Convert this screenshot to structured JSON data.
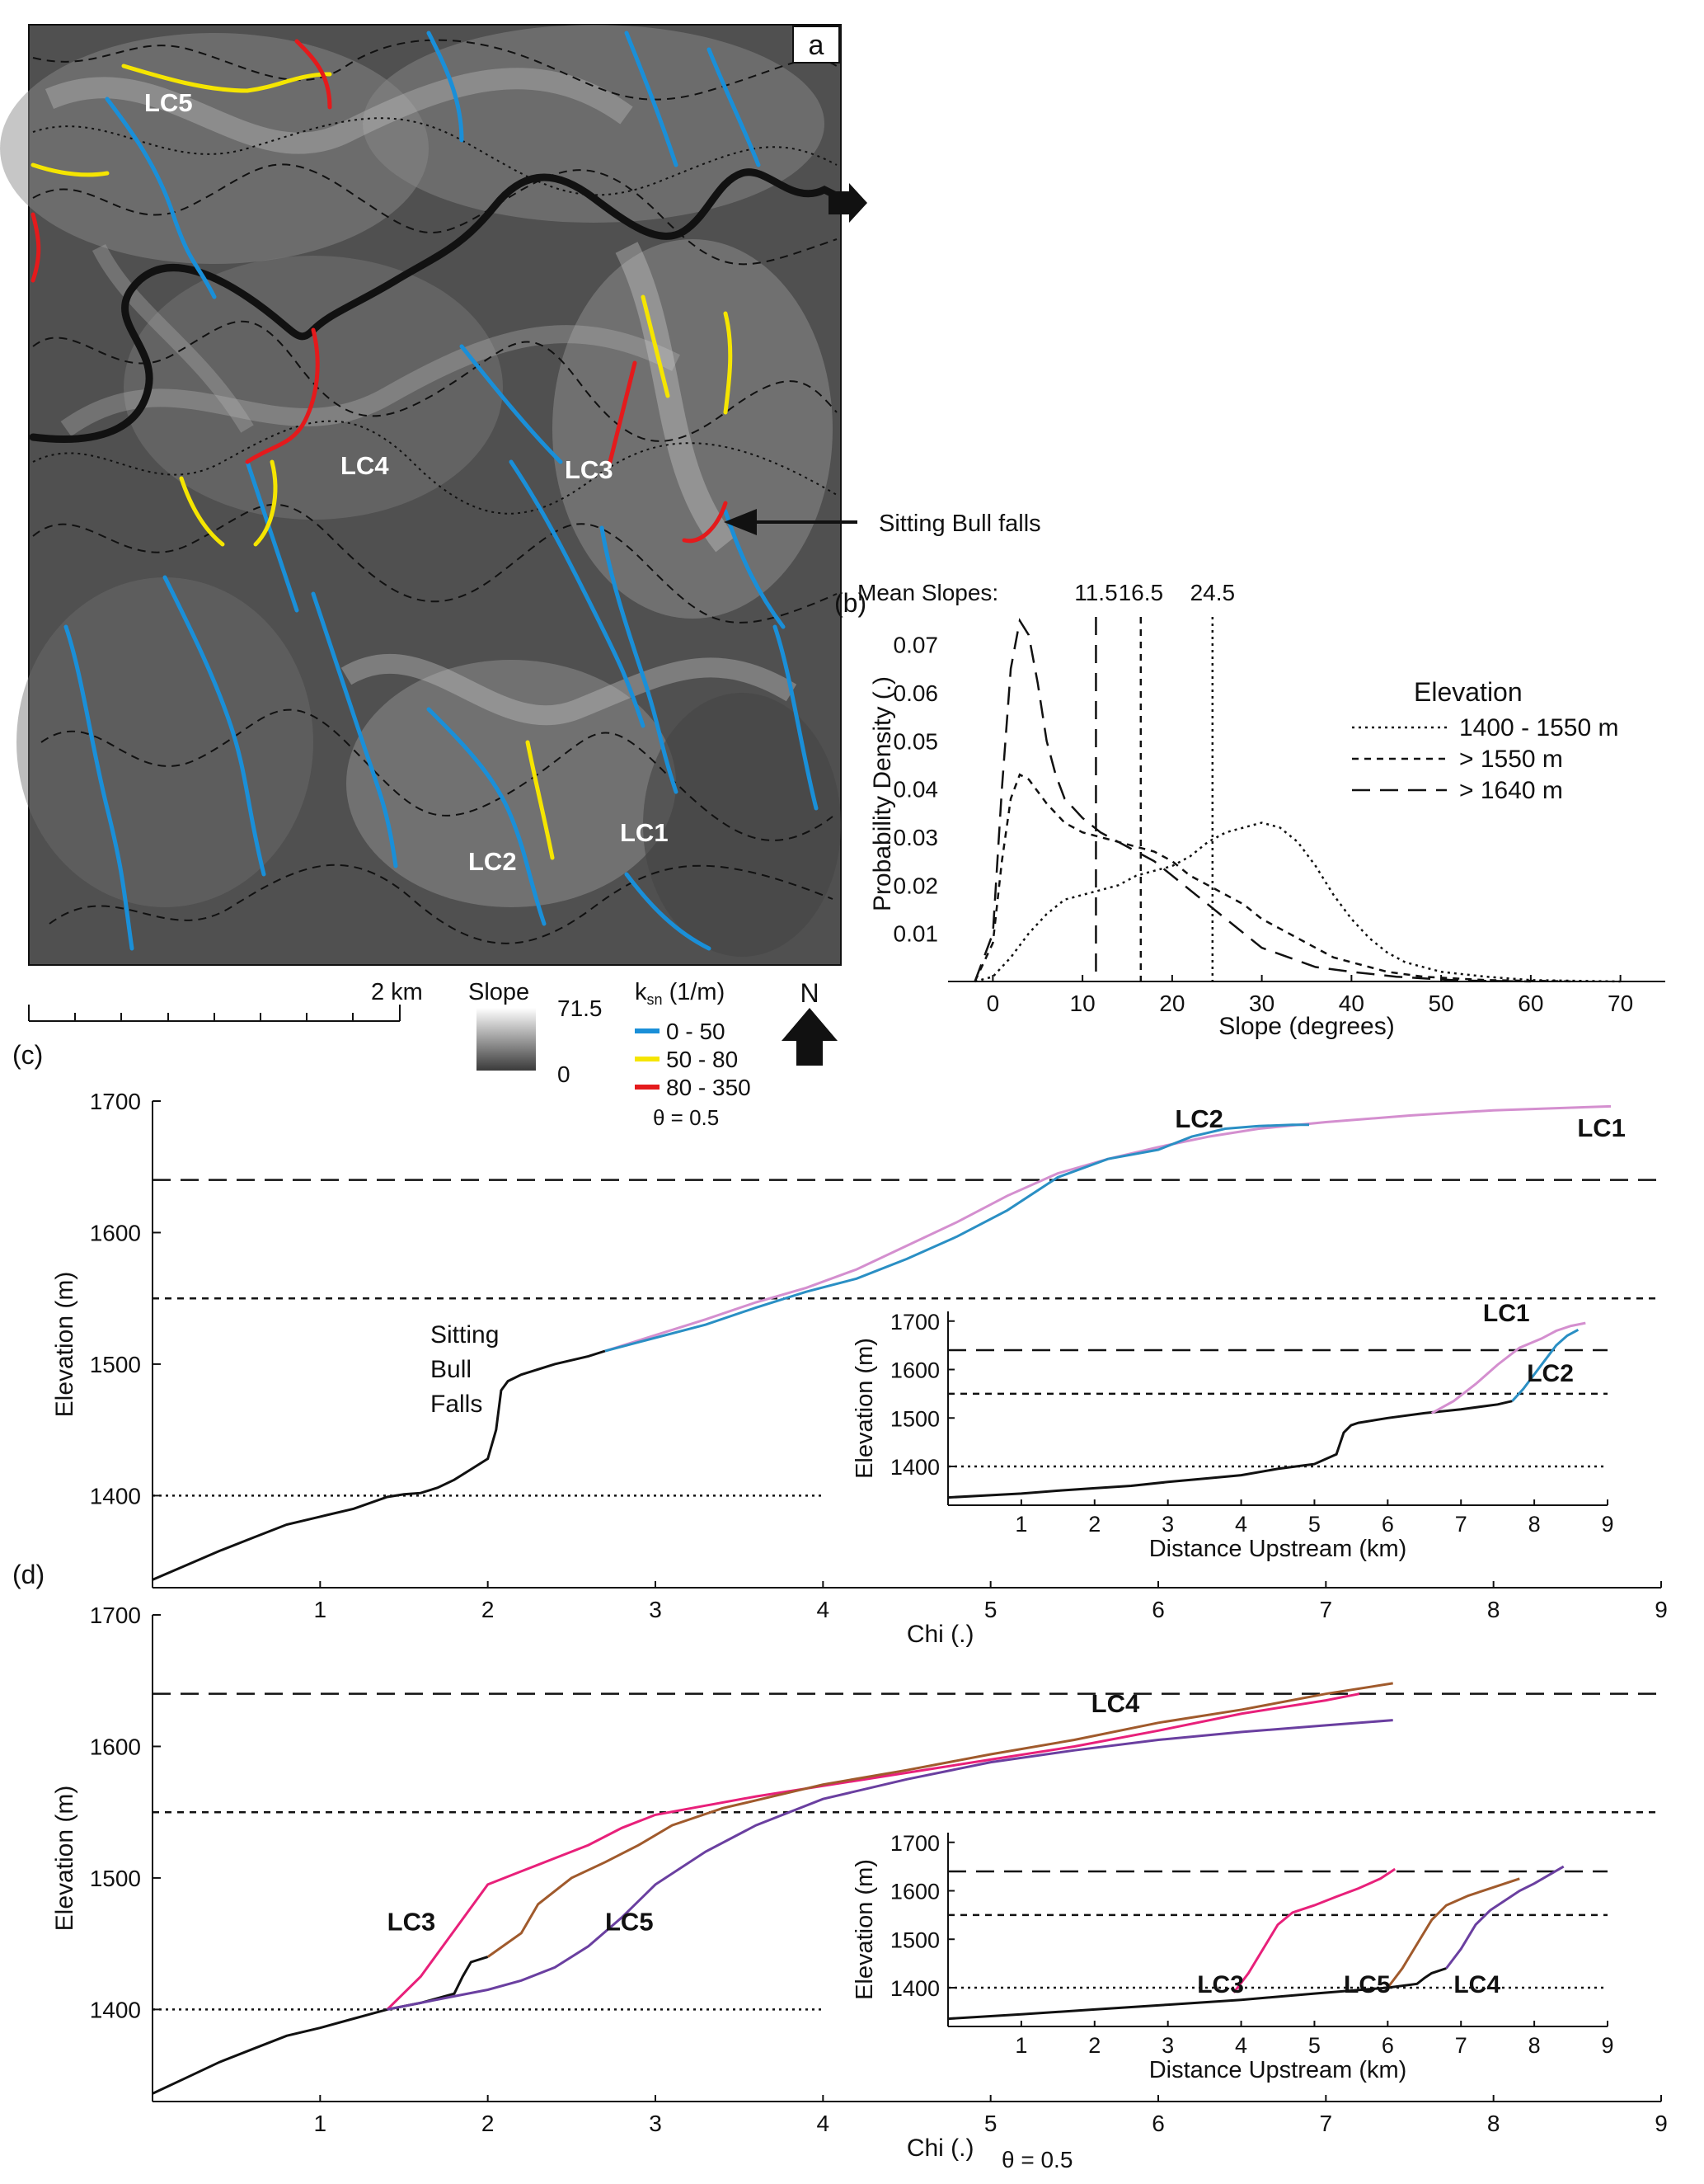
{
  "panel_a": {
    "label": "a",
    "callout": "Sitting Bull falls",
    "reach_labels": [
      "LC5",
      "LC4",
      "LC3",
      "LC2",
      "LC1"
    ],
    "scalebar_label": "2 km",
    "slope_legend": {
      "title": "Slope",
      "max": "71.5",
      "min": "0"
    },
    "ksn_legend": {
      "title": "k",
      "sub": "sn",
      "unit": " (1/m)",
      "classes": [
        {
          "label": "0 - 50",
          "color": "#1a8fd8"
        },
        {
          "label": "50 - 80",
          "color": "#f5e500"
        },
        {
          "label": "80 - 350",
          "color": "#e41a1c"
        }
      ],
      "theta": "θ = 0.5"
    },
    "north_label": "N",
    "main_river_color": "#111111"
  },
  "chart_data": [
    {
      "id": "b",
      "type": "line",
      "panel_label": "(b)",
      "xlabel": "Slope (degrees)",
      "ylabel": "Probability Density (.)",
      "xlim": [
        -5,
        75
      ],
      "ylim": [
        0,
        0.078
      ],
      "xticks": [
        0,
        10,
        20,
        30,
        40,
        50,
        60,
        70
      ],
      "yticks": [
        0.01,
        0.02,
        0.03,
        0.04,
        0.05,
        0.06,
        0.07
      ],
      "mean_slopes_label": "Mean Slopes:",
      "mean_lines": [
        {
          "value": 11.5,
          "label": "11.5",
          "dash": "22,12"
        },
        {
          "value": 16.5,
          "label": "16.5",
          "dash": "8,7"
        },
        {
          "value": 24.5,
          "label": "24.5",
          "dash": "3,5"
        }
      ],
      "legend_title": "Elevation",
      "legend_position": "right",
      "series": [
        {
          "name": "1400 - 1550 m",
          "dash": "3,5",
          "x": [
            -2,
            0,
            2,
            4,
            6,
            8,
            10,
            12,
            14,
            16,
            18,
            20,
            22,
            24,
            26,
            28,
            30,
            32,
            34,
            36,
            38,
            40,
            42,
            44,
            46,
            50,
            55,
            60,
            70
          ],
          "y": [
            0,
            0.001,
            0.005,
            0.01,
            0.014,
            0.017,
            0.018,
            0.019,
            0.02,
            0.022,
            0.023,
            0.024,
            0.026,
            0.029,
            0.031,
            0.032,
            0.033,
            0.032,
            0.029,
            0.024,
            0.018,
            0.013,
            0.009,
            0.006,
            0.004,
            0.002,
            0.001,
            0.0003,
            0
          ]
        },
        {
          "name": "> 1550 m",
          "dash": "8,7",
          "x": [
            -2,
            0,
            1,
            2,
            3,
            4,
            6,
            8,
            10,
            12,
            14,
            16,
            18,
            20,
            22,
            24,
            26,
            28,
            30,
            32,
            34,
            36,
            38,
            40,
            44,
            48,
            55,
            65
          ],
          "y": [
            0,
            0.008,
            0.025,
            0.038,
            0.043,
            0.042,
            0.037,
            0.033,
            0.031,
            0.03,
            0.029,
            0.028,
            0.027,
            0.025,
            0.022,
            0.02,
            0.018,
            0.016,
            0.013,
            0.011,
            0.009,
            0.007,
            0.005,
            0.004,
            0.002,
            0.001,
            0.0003,
            0
          ]
        },
        {
          "name": "> 1640 m",
          "dash": "22,12",
          "x": [
            -2,
            0,
            1,
            2,
            3,
            4,
            5,
            6,
            7,
            8,
            10,
            12,
            14,
            16,
            18,
            20,
            22,
            24,
            26,
            28,
            30,
            33,
            36,
            40,
            45,
            52,
            60
          ],
          "y": [
            0,
            0.01,
            0.04,
            0.065,
            0.075,
            0.072,
            0.062,
            0.05,
            0.043,
            0.038,
            0.034,
            0.031,
            0.029,
            0.027,
            0.025,
            0.022,
            0.019,
            0.016,
            0.013,
            0.01,
            0.007,
            0.005,
            0.003,
            0.002,
            0.001,
            0.0002,
            0
          ]
        }
      ]
    },
    {
      "id": "c",
      "type": "line",
      "panel_label": "(c)",
      "xlabel": "Chi (.)",
      "ylabel": "Elevation (m)",
      "xlim": [
        0,
        9
      ],
      "ylim": [
        1330,
        1700
      ],
      "xticks": [
        1,
        2,
        3,
        4,
        5,
        6,
        7,
        8,
        9
      ],
      "yticks": [
        1400,
        1500,
        1600,
        1700
      ],
      "hlines": [
        {
          "y": 1640,
          "dash": "22,12"
        },
        {
          "y": 1550,
          "dash": "8,7"
        },
        {
          "y": 1400,
          "dash": "3,5",
          "xmax": 4
        }
      ],
      "annotation_lines": [
        "Sitting",
        "Bull",
        "Falls"
      ],
      "series": [
        {
          "name": "",
          "color": "#111111",
          "x": [
            0,
            0.2,
            0.4,
            0.6,
            0.8,
            1.0,
            1.2,
            1.4,
            1.5,
            1.6,
            1.7,
            1.8,
            1.9,
            2.0,
            2.05,
            2.08,
            2.12,
            2.2,
            2.4,
            2.6,
            2.7
          ],
          "y": [
            1336,
            1347,
            1358,
            1368,
            1378,
            1384,
            1390,
            1399,
            1401,
            1402,
            1406,
            1412,
            1420,
            1428,
            1450,
            1480,
            1487,
            1492,
            1500,
            1506,
            1510
          ]
        },
        {
          "name": "LC1",
          "color": "#d48fcf",
          "x": [
            2.7,
            3.0,
            3.3,
            3.6,
            3.9,
            4.2,
            4.5,
            4.8,
            5.1,
            5.4,
            5.7,
            6.0,
            6.3,
            6.6,
            7.0,
            7.5,
            8.0,
            8.7
          ],
          "y": [
            1510,
            1522,
            1534,
            1547,
            1558,
            1572,
            1590,
            1608,
            1628,
            1645,
            1656,
            1665,
            1673,
            1679,
            1684,
            1689,
            1693,
            1696
          ]
        },
        {
          "name": "LC2",
          "color": "#2a8fc4",
          "x": [
            2.7,
            3.0,
            3.3,
            3.6,
            3.9,
            4.2,
            4.5,
            4.8,
            5.1,
            5.4,
            5.7,
            6.0,
            6.2,
            6.4,
            6.6,
            6.8,
            6.9
          ],
          "y": [
            1510,
            1520,
            1530,
            1543,
            1555,
            1565,
            1580,
            1597,
            1617,
            1642,
            1656,
            1663,
            1673,
            1679,
            1681,
            1682,
            1682
          ]
        }
      ],
      "series_labels": [
        "LC2",
        "LC1"
      ],
      "inset": {
        "xlabel": "Distance Upstream (km)",
        "ylabel": "Elevation (m)",
        "xlim": [
          0,
          9
        ],
        "ylim": [
          1320,
          1720
        ],
        "xticks": [
          1,
          2,
          3,
          4,
          5,
          6,
          7,
          8,
          9
        ],
        "yticks": [
          1400,
          1500,
          1600,
          1700
        ],
        "hlines": [
          {
            "y": 1640,
            "dash": "22,12"
          },
          {
            "y": 1550,
            "dash": "8,7"
          },
          {
            "y": 1400,
            "dash": "3,5"
          }
        ],
        "series_labels": [
          "LC1",
          "LC2"
        ],
        "series": [
          {
            "name": "",
            "color": "#111111",
            "x": [
              0,
              0.5,
              1,
              1.5,
              2,
              2.5,
              3,
              3.5,
              4,
              4.5,
              5,
              5.3,
              5.4,
              5.5,
              5.6,
              6,
              6.5,
              7,
              7.5,
              7.7
            ],
            "y": [
              1336,
              1340,
              1344,
              1350,
              1355,
              1360,
              1368,
              1375,
              1382,
              1395,
              1405,
              1425,
              1470,
              1485,
              1490,
              1500,
              1510,
              1518,
              1528,
              1535
            ]
          },
          {
            "name": "LC1",
            "color": "#d48fcf",
            "x": [
              6.6,
              6.9,
              7.2,
              7.5,
              7.8,
              8.1,
              8.3,
              8.5,
              8.7
            ],
            "y": [
              1510,
              1535,
              1570,
              1610,
              1645,
              1664,
              1680,
              1690,
              1696
            ]
          },
          {
            "name": "LC2",
            "color": "#2a8fc4",
            "x": [
              7.7,
              7.85,
              8.0,
              8.15,
              8.3,
              8.45,
              8.6
            ],
            "y": [
              1535,
              1560,
              1590,
              1620,
              1650,
              1670,
              1682
            ]
          }
        ]
      }
    },
    {
      "id": "d",
      "type": "line",
      "panel_label": "(d)",
      "xlabel": "Chi (.)",
      "ylabel": "Elevation (m)",
      "xlim": [
        0,
        9
      ],
      "ylim": [
        1330,
        1700
      ],
      "xticks": [
        1,
        2,
        3,
        4,
        5,
        6,
        7,
        8,
        9
      ],
      "yticks": [
        1400,
        1500,
        1600,
        1700
      ],
      "hlines": [
        {
          "y": 1640,
          "dash": "22,12"
        },
        {
          "y": 1550,
          "dash": "8,7"
        },
        {
          "y": 1400,
          "dash": "3,5",
          "xmax": 4
        }
      ],
      "footer": "θ = 0.5",
      "series": [
        {
          "name": "",
          "color": "#111111",
          "x": [
            0,
            0.2,
            0.4,
            0.6,
            0.8,
            1.0,
            1.2,
            1.4,
            1.6,
            1.8,
            1.85,
            1.9,
            2.0
          ],
          "y": [
            1336,
            1348,
            1360,
            1370,
            1380,
            1386,
            1393,
            1400,
            1405,
            1412,
            1425,
            1436,
            1440
          ]
        },
        {
          "name": "LC3",
          "color": "#e8207a",
          "x": [
            1.4,
            1.6,
            1.8,
            2.0,
            2.2,
            2.4,
            2.6,
            2.8,
            3.0,
            3.3,
            3.6,
            4.0,
            4.5,
            5.0,
            5.5,
            6.0,
            6.5,
            7.0,
            7.2
          ],
          "y": [
            1400,
            1425,
            1460,
            1495,
            1505,
            1515,
            1525,
            1538,
            1548,
            1555,
            1562,
            1570,
            1580,
            1590,
            1600,
            1612,
            1625,
            1635,
            1640
          ]
        },
        {
          "name": "LC4",
          "color": "#a05a2c",
          "x": [
            2.0,
            2.2,
            2.3,
            2.5,
            2.7,
            2.9,
            3.1,
            3.4,
            3.7,
            4.0,
            4.5,
            5.0,
            5.5,
            6.0,
            6.5,
            7.0,
            7.4
          ],
          "y": [
            1440,
            1458,
            1480,
            1500,
            1512,
            1525,
            1540,
            1553,
            1562,
            1571,
            1582,
            1594,
            1605,
            1618,
            1628,
            1640,
            1648
          ]
        },
        {
          "name": "LC5",
          "color": "#6a3fa0",
          "x": [
            1.4,
            1.6,
            1.8,
            2.0,
            2.2,
            2.4,
            2.6,
            2.8,
            3.0,
            3.3,
            3.6,
            4.0,
            4.5,
            5.0,
            5.5,
            6.0,
            6.5,
            7.0,
            7.4
          ],
          "y": [
            1400,
            1405,
            1410,
            1415,
            1422,
            1432,
            1448,
            1470,
            1495,
            1520,
            1540,
            1560,
            1575,
            1588,
            1597,
            1605,
            1611,
            1616,
            1620
          ]
        }
      ],
      "series_labels": [
        "LC4",
        "LC3",
        "LC5"
      ],
      "inset": {
        "xlabel": "Distance Upstream (km)",
        "ylabel": "Elevation (m)",
        "xlim": [
          0,
          9
        ],
        "ylim": [
          1320,
          1720
        ],
        "xticks": [
          1,
          2,
          3,
          4,
          5,
          6,
          7,
          8,
          9
        ],
        "yticks": [
          1400,
          1500,
          1600,
          1700
        ],
        "hlines": [
          {
            "y": 1640,
            "dash": "22,12"
          },
          {
            "y": 1550,
            "dash": "8,7"
          },
          {
            "y": 1400,
            "dash": "3,5"
          }
        ],
        "series_labels": [
          "LC3",
          "LC5",
          "LC4"
        ],
        "series": [
          {
            "name": "",
            "color": "#111111",
            "x": [
              0,
              1,
              2,
              3,
              4,
              5,
              6,
              6.4,
              6.5,
              6.6,
              6.8
            ],
            "y": [
              1336,
              1345,
              1355,
              1365,
              1375,
              1388,
              1400,
              1408,
              1420,
              1430,
              1440
            ]
          },
          {
            "name": "LC3",
            "color": "#e8207a",
            "x": [
              3.9,
              4.1,
              4.3,
              4.5,
              4.7,
              5.0,
              5.3,
              5.6,
              5.9,
              6.1
            ],
            "y": [
              1390,
              1430,
              1480,
              1530,
              1555,
              1570,
              1588,
              1605,
              1625,
              1645
            ]
          },
          {
            "name": "LC4",
            "color": "#a05a2c",
            "x": [
              6.0,
              6.2,
              6.4,
              6.6,
              6.8,
              7.1,
              7.4,
              7.8
            ],
            "y": [
              1400,
              1440,
              1490,
              1540,
              1570,
              1590,
              1605,
              1625
            ]
          },
          {
            "name": "LC5",
            "color": "#6a3fa0",
            "x": [
              6.8,
              7.0,
              7.2,
              7.4,
              7.6,
              7.8,
              8.0,
              8.4
            ],
            "y": [
              1440,
              1480,
              1530,
              1560,
              1580,
              1600,
              1615,
              1650
            ]
          }
        ]
      }
    }
  ]
}
